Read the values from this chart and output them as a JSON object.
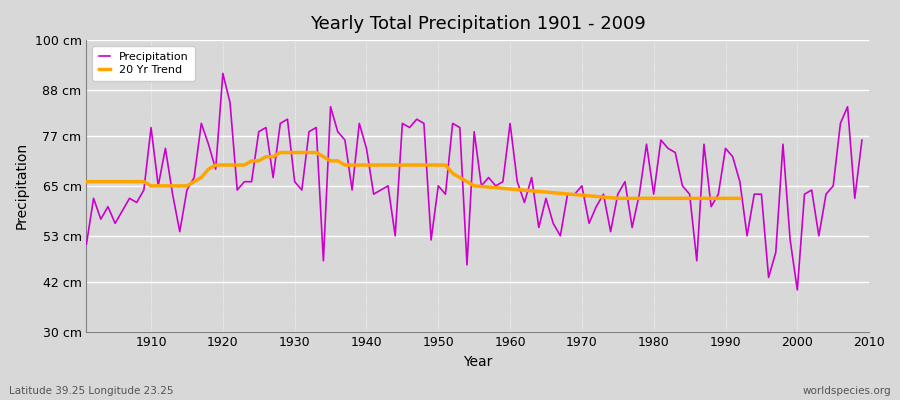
{
  "title": "Yearly Total Precipitation 1901 - 2009",
  "xlabel": "Year",
  "ylabel": "Precipitation",
  "subtitle": "Latitude 39.25 Longitude 23.25",
  "watermark": "worldspecies.org",
  "bg_color": "#d8d8d8",
  "plot_bg_color": "#d8d8d8",
  "precip_color": "#cc00cc",
  "trend_color": "#ffa500",
  "ylim": [
    30,
    100
  ],
  "yticks": [
    30,
    42,
    53,
    65,
    77,
    88,
    100
  ],
  "ytick_labels": [
    "30 cm",
    "42 cm",
    "53 cm",
    "65 cm",
    "77 cm",
    "88 cm",
    "100 cm"
  ],
  "years": [
    1901,
    1902,
    1903,
    1904,
    1905,
    1906,
    1907,
    1908,
    1909,
    1910,
    1911,
    1912,
    1913,
    1914,
    1915,
    1916,
    1917,
    1918,
    1919,
    1920,
    1921,
    1922,
    1923,
    1924,
    1925,
    1926,
    1927,
    1928,
    1929,
    1930,
    1931,
    1932,
    1933,
    1934,
    1935,
    1936,
    1937,
    1938,
    1939,
    1940,
    1941,
    1942,
    1943,
    1944,
    1945,
    1946,
    1947,
    1948,
    1949,
    1950,
    1951,
    1952,
    1953,
    1954,
    1955,
    1956,
    1957,
    1958,
    1959,
    1960,
    1961,
    1962,
    1963,
    1964,
    1965,
    1966,
    1967,
    1968,
    1969,
    1970,
    1971,
    1972,
    1973,
    1974,
    1975,
    1976,
    1977,
    1978,
    1979,
    1980,
    1981,
    1982,
    1983,
    1984,
    1985,
    1986,
    1987,
    1988,
    1989,
    1990,
    1991,
    1992,
    1993,
    1994,
    1995,
    1996,
    1997,
    1998,
    1999,
    2000,
    2001,
    2002,
    2003,
    2004,
    2005,
    2006,
    2007,
    2008,
    2009
  ],
  "precip": [
    51,
    62,
    57,
    60,
    56,
    59,
    62,
    61,
    64,
    79,
    65,
    74,
    63,
    54,
    64,
    67,
    80,
    75,
    69,
    92,
    85,
    64,
    66,
    66,
    78,
    79,
    67,
    80,
    81,
    66,
    64,
    78,
    79,
    47,
    84,
    78,
    76,
    64,
    80,
    74,
    63,
    64,
    65,
    53,
    80,
    79,
    81,
    80,
    52,
    65,
    63,
    80,
    79,
    46,
    78,
    65,
    67,
    65,
    66,
    80,
    66,
    61,
    67,
    55,
    62,
    56,
    53,
    63,
    63,
    65,
    56,
    60,
    63,
    54,
    63,
    66,
    55,
    63,
    75,
    63,
    76,
    74,
    73,
    65,
    63,
    47,
    75,
    60,
    63,
    74,
    72,
    66,
    53,
    63,
    63,
    43,
    49,
    75,
    52,
    40,
    63,
    64,
    53,
    63,
    65,
    80,
    84,
    62,
    76
  ],
  "trend_years": [
    1901,
    1902,
    1903,
    1904,
    1905,
    1906,
    1907,
    1908,
    1909,
    1910,
    1911,
    1912,
    1913,
    1914,
    1915,
    1916,
    1917,
    1918,
    1919,
    1920,
    1921,
    1922,
    1923,
    1924,
    1925,
    1926,
    1927,
    1928,
    1929,
    1930,
    1931,
    1932,
    1933,
    1934,
    1935,
    1936,
    1937,
    1938,
    1939,
    1940,
    1941,
    1942,
    1943,
    1944,
    1945,
    1946,
    1947,
    1948,
    1949,
    1950,
    1951,
    1952,
    1953,
    1954,
    1955,
    1975,
    1976,
    1977,
    1978,
    1979,
    1980,
    1981,
    1982,
    1983,
    1984,
    1985,
    1986,
    1987,
    1988,
    1989,
    1990,
    1991,
    1992
  ],
  "trend": [
    66,
    66,
    66,
    66,
    66,
    66,
    66,
    66,
    66,
    65,
    65,
    65,
    65,
    65,
    65,
    66,
    67,
    69,
    70,
    70,
    70,
    70,
    70,
    71,
    71,
    72,
    72,
    73,
    73,
    73,
    73,
    73,
    73,
    72,
    71,
    71,
    70,
    70,
    70,
    70,
    70,
    70,
    70,
    70,
    70,
    70,
    70,
    70,
    70,
    70,
    70,
    68,
    67,
    66,
    65,
    62,
    62,
    62,
    62,
    62,
    62,
    62,
    62,
    62,
    62,
    62,
    62,
    62,
    62,
    62,
    62,
    62,
    62
  ]
}
